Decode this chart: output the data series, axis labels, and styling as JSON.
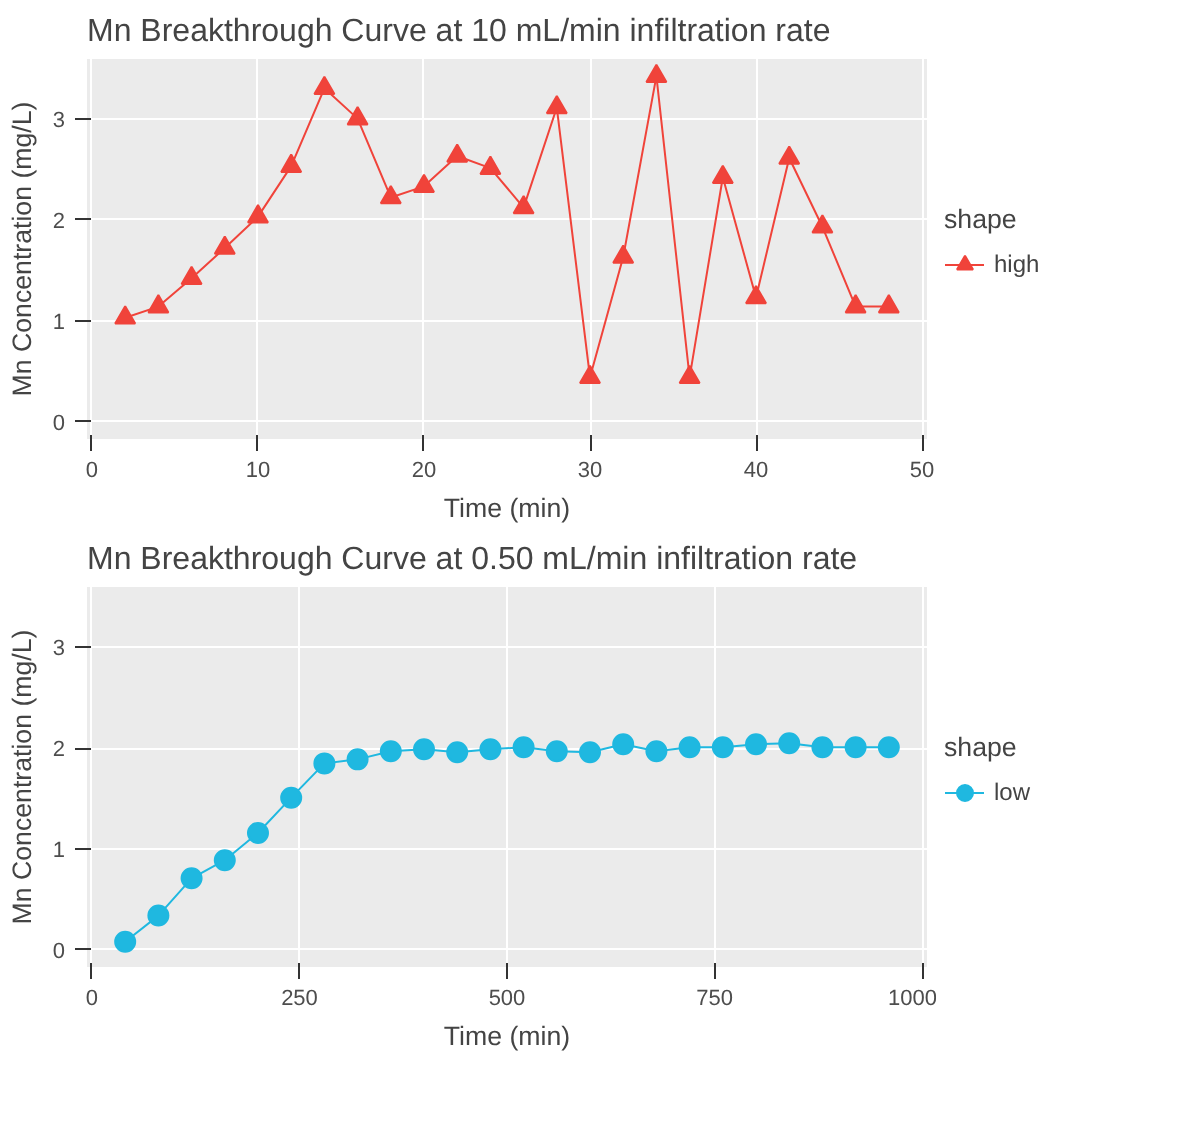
{
  "chart_data": [
    {
      "type": "line",
      "title": "Mn Breakthrough Curve at 10 mL/min infiltration rate",
      "xlabel": "Time (min)",
      "ylabel": "Mn Concentration (mg/L)",
      "legend_title": "shape",
      "legend": "right",
      "grid": true,
      "marker": "triangle",
      "line_style": "solid",
      "x": [
        2,
        4,
        6,
        8,
        10,
        12,
        14,
        16,
        18,
        20,
        22,
        24,
        26,
        28,
        30,
        32,
        34,
        36,
        38,
        40,
        42,
        44,
        46,
        48
      ],
      "series": [
        {
          "name": "high",
          "color": "#f0433a",
          "values": [
            1.03,
            1.14,
            1.42,
            1.72,
            2.03,
            2.53,
            3.3,
            3.0,
            2.22,
            2.33,
            2.63,
            2.51,
            2.12,
            3.11,
            0.44,
            1.63,
            3.42,
            0.44,
            2.42,
            1.23,
            2.61,
            1.93,
            1.14,
            1.14
          ]
        }
      ],
      "xlim": [
        -0.3,
        50.3
      ],
      "xticks": [
        0,
        10,
        20,
        30,
        40,
        50
      ],
      "ylim": [
        -0.17,
        3.59
      ],
      "yticks": [
        0,
        1,
        2,
        3
      ]
    },
    {
      "type": "line",
      "title": "Mn Breakthrough Curve at 0.50 mL/min infiltration rate",
      "xlabel": "Time (min)",
      "ylabel": "Mn Concentration (mg/L)",
      "legend_title": "shape",
      "legend": "right",
      "grid": true,
      "marker": "circle",
      "line_style": "solid",
      "x": [
        40,
        80,
        120,
        160,
        200,
        240,
        280,
        320,
        360,
        400,
        440,
        480,
        520,
        560,
        600,
        640,
        680,
        720,
        760,
        800,
        840,
        880,
        920,
        960
      ],
      "series": [
        {
          "name": "low",
          "color": "#1fb8e0",
          "values": [
            0.08,
            0.34,
            0.71,
            0.89,
            1.16,
            1.51,
            1.85,
            1.89,
            1.97,
            1.99,
            1.96,
            1.99,
            2.01,
            1.97,
            1.96,
            2.04,
            1.97,
            2.01,
            2.01,
            2.04,
            2.05,
            2.01,
            2.01,
            2.01
          ]
        }
      ],
      "xlim": [
        -6,
        1006
      ],
      "xticks": [
        0,
        250,
        500,
        750,
        1000
      ],
      "ylim": [
        -0.17,
        3.6
      ],
      "yticks": [
        0,
        1,
        2,
        3
      ]
    }
  ]
}
